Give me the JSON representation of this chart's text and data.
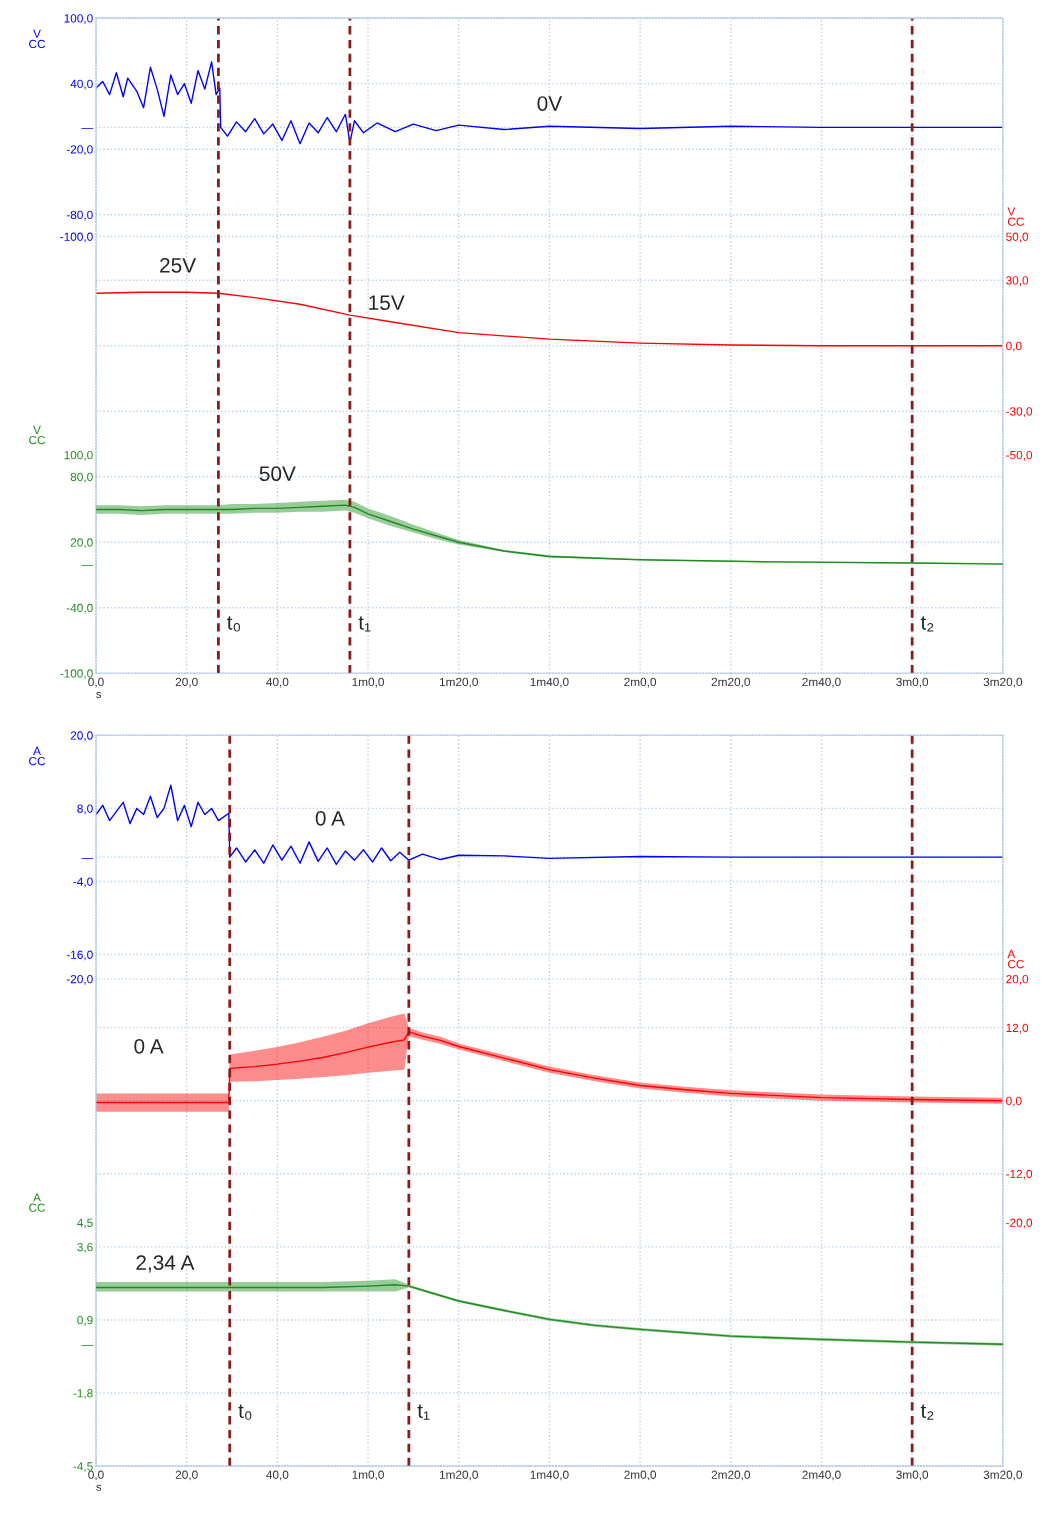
{
  "chart_data": [
    {
      "type": "line",
      "xlim": [
        0,
        200
      ],
      "xlabel": "s",
      "ylabel": "V\nCC",
      "y2label": "V\nCC",
      "y3label": "V\nCC",
      "grid": true,
      "xticks": [
        {
          "value": 0,
          "label": "0,0"
        },
        {
          "value": 20,
          "label": "20,0"
        },
        {
          "value": 40,
          "label": "40,0"
        },
        {
          "value": 60,
          "label": "1m0,0"
        },
        {
          "value": 80,
          "label": "1m20,0"
        },
        {
          "value": 100,
          "label": "1m40,0"
        },
        {
          "value": 120,
          "label": "2m0,0"
        },
        {
          "value": 140,
          "label": "2m20,0"
        },
        {
          "value": 160,
          "label": "2m40,0"
        },
        {
          "value": 180,
          "label": "3m0,0"
        },
        {
          "value": 200,
          "label": "3m20,0"
        }
      ],
      "ylim": [
        -500,
        100
      ],
      "yticks": [
        {
          "value": 100,
          "label": "100,0"
        },
        {
          "value": 40,
          "label": "40,0"
        },
        {
          "value": 0,
          "label": "—"
        },
        {
          "value": -20,
          "label": "-20,0"
        },
        {
          "value": -80,
          "label": "-80,0"
        },
        {
          "value": -100,
          "label": "-100,0"
        },
        {
          "value": -140,
          "label": null
        },
        {
          "value": -200,
          "label": null
        },
        {
          "value": -260,
          "label": null
        },
        {
          "value": -320,
          "label": null
        },
        {
          "value": -380,
          "label": null
        },
        {
          "value": -440,
          "label": null
        }
      ],
      "y2lim": [
        -150,
        150
      ],
      "y2ticks": [
        {
          "value": 50,
          "label": "50,0"
        },
        {
          "value": 30,
          "label": "30,0"
        },
        {
          "value": 0,
          "label": "0,0"
        },
        {
          "value": -30,
          "label": "-30,0"
        },
        {
          "value": -50,
          "label": "-50,0"
        }
      ],
      "y3lim": [
        -100,
        500
      ],
      "y3ticks": [
        {
          "value": 100,
          "label": "100,0"
        },
        {
          "value": 80,
          "label": "80,0"
        },
        {
          "value": 20,
          "label": "20,0"
        },
        {
          "value": 0,
          "label": "—"
        },
        {
          "value": -40,
          "label": "-40,0"
        },
        {
          "value": -100,
          "label": "-100,0"
        }
      ],
      "series": [
        {
          "color": "#0000ff",
          "axis": "y",
          "x": [
            0,
            1.5,
            3,
            4.5,
            6,
            7,
            9,
            10.5,
            12,
            13.5,
            15,
            16.5,
            18,
            19.5,
            21,
            22.5,
            24,
            25.5,
            26.5,
            27.3,
            27.5,
            29,
            31,
            33,
            35,
            37,
            39,
            41,
            43,
            45,
            47,
            49,
            51,
            53,
            55,
            56,
            57,
            59,
            62,
            66,
            70,
            75,
            80,
            90,
            100,
            120,
            140,
            160,
            180,
            200
          ],
          "values": [
            36,
            42,
            30,
            50,
            28,
            45,
            33,
            18,
            55,
            35,
            10,
            48,
            30,
            40,
            22,
            52,
            35,
            60,
            30,
            36,
            0,
            -8,
            5,
            -4,
            8,
            -6,
            3,
            -12,
            6,
            -15,
            4,
            -5,
            9,
            -4,
            12,
            -14,
            6,
            -5,
            4,
            -4,
            3,
            -3,
            2,
            -2,
            1,
            -1,
            1,
            0,
            0,
            0
          ]
        },
        {
          "color": "#ff0000",
          "axis": "y2",
          "x": [
            0,
            10,
            20,
            27,
            35,
            45,
            56,
            65,
            80,
            100,
            120,
            140,
            160,
            180,
            200
          ],
          "values": [
            24,
            24.5,
            24.5,
            24,
            22,
            19,
            14,
            11,
            6,
            3,
            1.2,
            0.3,
            0,
            0,
            0
          ]
        },
        {
          "color": "#1e8c1e",
          "axis": "y3",
          "x": [
            0,
            5,
            10,
            15,
            20,
            25,
            27,
            30,
            35,
            40,
            45,
            50,
            55,
            57,
            60,
            65,
            70,
            75,
            80,
            90,
            100,
            120,
            150,
            180,
            200
          ],
          "values": [
            50,
            50,
            49,
            50,
            50,
            50,
            50,
            50,
            51,
            51,
            52,
            53,
            54,
            52,
            46,
            39,
            32,
            26,
            20,
            12,
            7,
            4,
            2,
            1,
            0
          ],
          "lower": [
            46,
            46,
            45,
            46,
            46,
            46,
            46,
            46,
            47,
            47,
            48,
            48,
            49,
            47,
            42,
            35,
            29,
            23,
            18,
            11,
            6,
            3.5,
            1.5,
            0.5,
            0
          ],
          "upper": [
            54,
            54,
            53,
            54,
            54,
            54,
            54,
            55,
            55,
            56,
            57,
            58,
            59,
            57,
            51,
            44,
            36,
            29,
            22,
            13,
            8,
            4.5,
            2.5,
            1.5,
            1
          ]
        }
      ],
      "ref_lines": [
        {
          "axis": "x",
          "value": 27,
          "label": "t₀",
          "color": "#8b1a1a",
          "line_style": "dashed"
        },
        {
          "axis": "x",
          "value": 56,
          "label": "t₁",
          "color": "#8b1a1a",
          "line_style": "dashed"
        },
        {
          "axis": "x",
          "value": 180,
          "label": "t₂",
          "color": "#8b1a1a",
          "line_style": "dashed"
        }
      ],
      "annotations": [
        "0V",
        "25V",
        "15V",
        "50V"
      ]
    },
    {
      "type": "line",
      "xlim": [
        0,
        200
      ],
      "xlabel": "s",
      "ylabel": "A\nCC",
      "y2label": "A\nCC",
      "y3label": "A\nCC",
      "grid": true,
      "xticks": [
        {
          "value": 0,
          "label": "0,0"
        },
        {
          "value": 20,
          "label": "20,0"
        },
        {
          "value": 40,
          "label": "40,0"
        },
        {
          "value": 60,
          "label": "1m0,0"
        },
        {
          "value": 80,
          "label": "1m20,0"
        },
        {
          "value": 100,
          "label": "1m40,0"
        },
        {
          "value": 120,
          "label": "2m0,0"
        },
        {
          "value": 140,
          "label": "2m20,0"
        },
        {
          "value": 160,
          "label": "2m40,0"
        },
        {
          "value": 180,
          "label": "3m0,0"
        },
        {
          "value": 200,
          "label": "3m20,0"
        }
      ],
      "ylim": [
        -100,
        20
      ],
      "yticks": [
        {
          "value": 20,
          "label": "20,0"
        },
        {
          "value": 8,
          "label": "8,0"
        },
        {
          "value": 0,
          "label": "—"
        },
        {
          "value": -4,
          "label": "-4,0"
        },
        {
          "value": -16,
          "label": "-16,0"
        },
        {
          "value": -20,
          "label": "-20,0"
        },
        {
          "value": -28,
          "label": null
        },
        {
          "value": -40,
          "label": null
        },
        {
          "value": -52,
          "label": null
        },
        {
          "value": -64,
          "label": null
        },
        {
          "value": -76,
          "label": null
        },
        {
          "value": -88,
          "label": null
        }
      ],
      "y2lim": [
        -60,
        60
      ],
      "y2ticks": [
        {
          "value": 20,
          "label": "20,0"
        },
        {
          "value": 12,
          "label": "12,0"
        },
        {
          "value": 0,
          "label": "0,0"
        },
        {
          "value": -12,
          "label": "-12,0"
        },
        {
          "value": -20,
          "label": "-20,0"
        }
      ],
      "y3lim": [
        -4.5,
        22.5
      ],
      "y3ticks": [
        {
          "value": 4.5,
          "label": "4,5"
        },
        {
          "value": 3.6,
          "label": "3,6"
        },
        {
          "value": 0.9,
          "label": "0,9"
        },
        {
          "value": 0,
          "label": "—"
        },
        {
          "value": -1.8,
          "label": "-1,8"
        },
        {
          "value": -4.5,
          "label": "-4,5"
        }
      ],
      "series": [
        {
          "color": "#0000ff",
          "axis": "y",
          "x": [
            0,
            1.5,
            3,
            4.5,
            6,
            7.5,
            9,
            10.5,
            12,
            13.5,
            15,
            16.5,
            18,
            19.5,
            21,
            22.5,
            24,
            25.5,
            27,
            29.3,
            29.5,
            31,
            33,
            35,
            37,
            39,
            41,
            43,
            45,
            47,
            49,
            51,
            53,
            55,
            57,
            59,
            61,
            63,
            65,
            67,
            69,
            72,
            76,
            80,
            90,
            100,
            120,
            140,
            170,
            200
          ],
          "values": [
            7,
            8.5,
            6,
            7.5,
            9,
            5.5,
            8,
            7,
            10,
            6.5,
            8,
            11.8,
            6,
            8.5,
            5,
            9,
            7,
            8,
            6,
            7.2,
            0,
            1.5,
            -0.8,
            1.2,
            -1,
            2,
            -0.5,
            1.8,
            -1,
            2.5,
            -0.7,
            1.5,
            -1.2,
            1,
            -0.5,
            1.2,
            -0.8,
            1.5,
            -0.6,
            0.8,
            -0.5,
            0.5,
            -0.4,
            0.3,
            0.2,
            -0.2,
            0.1,
            0,
            0,
            0
          ]
        },
        {
          "color": "#ff0000",
          "axis": "y2",
          "x": [
            0,
            5,
            10,
            15,
            20,
            25,
            29.3,
            29.5,
            35,
            40,
            45,
            50,
            55,
            60,
            65,
            68,
            69,
            72,
            76,
            80,
            90,
            100,
            110,
            120,
            130,
            140,
            160,
            180,
            200
          ],
          "values": [
            -0.3,
            -0.3,
            -0.3,
            -0.3,
            -0.3,
            -0.3,
            -0.3,
            5.3,
            5.6,
            6,
            6.5,
            7.1,
            7.9,
            8.8,
            9.6,
            10,
            11.3,
            10.6,
            9.9,
            8.9,
            7,
            5.1,
            3.7,
            2.5,
            1.8,
            1.2,
            0.5,
            0.2,
            0
          ],
          "lower": [
            -1.8,
            -1.8,
            -1.8,
            -1.8,
            -1.8,
            -1.8,
            -1.8,
            3.1,
            3.2,
            3.4,
            3.6,
            3.9,
            4.2,
            4.6,
            4.9,
            5.1,
            10.6,
            10,
            9.3,
            8.4,
            6.5,
            4.6,
            3.2,
            2,
            1.3,
            0.7,
            0,
            -0.3,
            -0.5
          ],
          "upper": [
            1.2,
            1.2,
            1.2,
            1.2,
            1.2,
            1.2,
            1.2,
            7.6,
            8.2,
            8.8,
            9.6,
            10.5,
            11.5,
            12.7,
            13.8,
            14.3,
            12,
            11.2,
            10.5,
            9.4,
            7.5,
            5.6,
            4.2,
            3,
            2.3,
            1.7,
            1,
            0.7,
            0.5
          ]
        },
        {
          "color": "#1e8c1e",
          "axis": "y3",
          "x": [
            0,
            10,
            20,
            29.5,
            40,
            50,
            60,
            66,
            69,
            75,
            80,
            90,
            100,
            110,
            120,
            140,
            160,
            180,
            200
          ],
          "values": [
            2.1,
            2.1,
            2.1,
            2.1,
            2.1,
            2.1,
            2.15,
            2.2,
            2.15,
            1.85,
            1.6,
            1.25,
            0.92,
            0.7,
            0.55,
            0.3,
            0.18,
            0.08,
            0
          ],
          "lower": [
            1.95,
            1.95,
            1.95,
            1.95,
            1.95,
            1.95,
            1.95,
            1.95,
            2.1,
            1.8,
            1.55,
            1.2,
            0.87,
            0.65,
            0.5,
            0.25,
            0.13,
            0.03,
            -0.05
          ],
          "upper": [
            2.3,
            2.3,
            2.3,
            2.3,
            2.3,
            2.3,
            2.35,
            2.4,
            2.2,
            1.9,
            1.65,
            1.3,
            0.97,
            0.75,
            0.6,
            0.35,
            0.23,
            0.13,
            0.05
          ]
        }
      ],
      "ref_lines": [
        {
          "axis": "x",
          "value": 29.5,
          "label": "t₀",
          "color": "#8b1a1a",
          "line_style": "dashed"
        },
        {
          "axis": "x",
          "value": 69,
          "label": "t₁",
          "color": "#8b1a1a",
          "line_style": "dashed"
        },
        {
          "axis": "x",
          "value": 180,
          "label": "t₂",
          "color": "#8b1a1a",
          "line_style": "dashed"
        }
      ],
      "annotations": [
        "0 A",
        "0 A",
        "2,34 A"
      ]
    }
  ]
}
